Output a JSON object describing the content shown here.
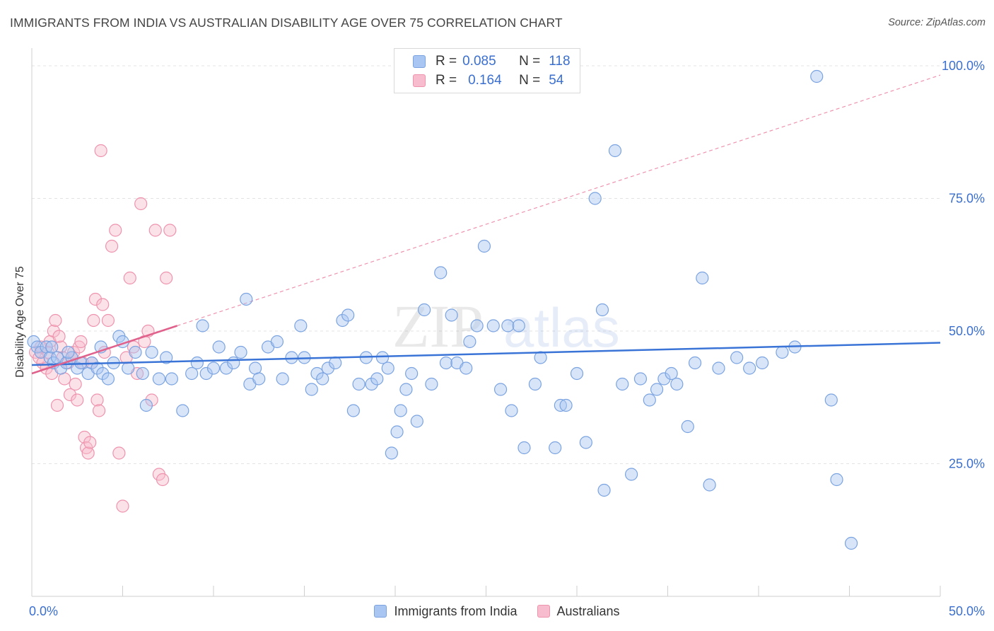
{
  "title": "IMMIGRANTS FROM INDIA VS AUSTRALIAN DISABILITY AGE OVER 75 CORRELATION CHART",
  "source": "Source: ZipAtlas.com",
  "watermark": {
    "zip": "ZIP",
    "atlas": "atlas"
  },
  "colors": {
    "blue_fill": "#a9c6f2",
    "blue_stroke": "#7aa3e0",
    "blue_line": "#3a74d6",
    "pink_fill": "#f7bccd",
    "pink_stroke": "#ee93ae",
    "pink_line": "#e0628c",
    "axis_text": "#3a6fcf",
    "grid": "#e3e3e3"
  },
  "legend": {
    "rows": [
      {
        "r_label": "R =",
        "r_value": "0.085",
        "n_label": "N =",
        "n_value": "118"
      },
      {
        "r_label": "R =",
        "r_value": "0.164",
        "n_label": "N =",
        "n_value": "54"
      }
    ]
  },
  "bottom_legend": {
    "series1": "Immigrants from India",
    "series2": "Australians"
  },
  "chart_data": {
    "type": "scatter",
    "title": "IMMIGRANTS FROM INDIA VS AUSTRALIAN DISABILITY AGE OVER 75 CORRELATION CHART",
    "xlabel": "",
    "ylabel": "Disability Age Over 75",
    "xlim": [
      0,
      50
    ],
    "ylim": [
      0,
      102
    ],
    "x_tick_labels": {
      "left": "0.0%",
      "right": "50.0%"
    },
    "y_ticks": [
      {
        "value": 25,
        "label": "25.0%"
      },
      {
        "value": 50,
        "label": "50.0%"
      },
      {
        "value": 75,
        "label": "75.0%"
      },
      {
        "value": 100,
        "label": "100.0%"
      }
    ],
    "grid": true,
    "series": [
      {
        "name": "Immigrants from India",
        "R": 0.085,
        "N": 118,
        "trend": {
          "x0": 0,
          "y0": 43.6,
          "x1": 50,
          "y1": 47.8
        },
        "points": [
          [
            0.1,
            48
          ],
          [
            0.3,
            47
          ],
          [
            0.5,
            46
          ],
          [
            0.8,
            47
          ],
          [
            1.0,
            45
          ],
          [
            1.2,
            44
          ],
          [
            1.4,
            45
          ],
          [
            1.6,
            43
          ],
          [
            1.9,
            44
          ],
          [
            2.2,
            45
          ],
          [
            2.5,
            43
          ],
          [
            2.7,
            44
          ],
          [
            3.1,
            42
          ],
          [
            3.3,
            44
          ],
          [
            3.6,
            43
          ],
          [
            3.9,
            42
          ],
          [
            4.2,
            41
          ],
          [
            4.5,
            44
          ],
          [
            4.8,
            49
          ],
          [
            5.3,
            43
          ],
          [
            5.7,
            46
          ],
          [
            6.1,
            42
          ],
          [
            6.6,
            46
          ],
          [
            7.0,
            41
          ],
          [
            7.4,
            45
          ],
          [
            7.7,
            41
          ],
          [
            8.3,
            35
          ],
          [
            8.8,
            42
          ],
          [
            9.1,
            44
          ],
          [
            9.4,
            51
          ],
          [
            9.6,
            42
          ],
          [
            10.0,
            43
          ],
          [
            10.3,
            47
          ],
          [
            10.7,
            43
          ],
          [
            11.1,
            44
          ],
          [
            11.5,
            46
          ],
          [
            11.8,
            56
          ],
          [
            12.0,
            40
          ],
          [
            12.3,
            43
          ],
          [
            12.5,
            41
          ],
          [
            13.0,
            47
          ],
          [
            13.5,
            48
          ],
          [
            13.8,
            41
          ],
          [
            14.3,
            45
          ],
          [
            14.8,
            51
          ],
          [
            15.0,
            45
          ],
          [
            15.4,
            39
          ],
          [
            15.7,
            42
          ],
          [
            16.0,
            41
          ],
          [
            16.3,
            43
          ],
          [
            16.7,
            44
          ],
          [
            17.1,
            52
          ],
          [
            17.4,
            53
          ],
          [
            17.7,
            35
          ],
          [
            18.0,
            40
          ],
          [
            18.4,
            45
          ],
          [
            18.7,
            40
          ],
          [
            19.0,
            41
          ],
          [
            19.3,
            45
          ],
          [
            19.6,
            43
          ],
          [
            19.8,
            27
          ],
          [
            20.1,
            31
          ],
          [
            20.3,
            35
          ],
          [
            20.6,
            39
          ],
          [
            20.9,
            42
          ],
          [
            21.2,
            33
          ],
          [
            21.6,
            54
          ],
          [
            22.0,
            40
          ],
          [
            22.5,
            61
          ],
          [
            22.8,
            44
          ],
          [
            23.1,
            53
          ],
          [
            23.4,
            44
          ],
          [
            23.9,
            43
          ],
          [
            24.1,
            48
          ],
          [
            24.5,
            51
          ],
          [
            24.9,
            66
          ],
          [
            25.4,
            51
          ],
          [
            25.8,
            39
          ],
          [
            26.2,
            51
          ],
          [
            26.4,
            35
          ],
          [
            26.8,
            51
          ],
          [
            27.1,
            28
          ],
          [
            27.7,
            40
          ],
          [
            28.8,
            28
          ],
          [
            29.1,
            36
          ],
          [
            29.4,
            36
          ],
          [
            30.5,
            29
          ],
          [
            31.0,
            75
          ],
          [
            31.4,
            54
          ],
          [
            31.5,
            20
          ],
          [
            32.1,
            84
          ],
          [
            33.0,
            23
          ],
          [
            34.0,
            37
          ],
          [
            34.4,
            39
          ],
          [
            34.8,
            41
          ],
          [
            35.2,
            42
          ],
          [
            35.5,
            40
          ],
          [
            36.1,
            32
          ],
          [
            36.9,
            60
          ],
          [
            37.3,
            21
          ],
          [
            43.2,
            98
          ],
          [
            44.0,
            37
          ],
          [
            44.3,
            22
          ],
          [
            45.1,
            10
          ],
          [
            38.8,
            45
          ],
          [
            39.5,
            43
          ],
          [
            40.2,
            44
          ],
          [
            41.3,
            46
          ],
          [
            42.0,
            47
          ],
          [
            36.5,
            44
          ],
          [
            37.8,
            43
          ],
          [
            33.5,
            41
          ],
          [
            32.5,
            40
          ],
          [
            30.0,
            42
          ],
          [
            28.0,
            45
          ],
          [
            6.3,
            36
          ],
          [
            5.0,
            48
          ],
          [
            3.8,
            47
          ],
          [
            2.0,
            46
          ],
          [
            1.1,
            47
          ]
        ]
      },
      {
        "name": "Australians",
        "R": 0.164,
        "N": 54,
        "trend": {
          "x0": 0,
          "y0": 42.0,
          "x1": 8.0,
          "y1": 51.0
        },
        "points": [
          [
            0.2,
            46
          ],
          [
            0.4,
            45
          ],
          [
            0.6,
            44
          ],
          [
            0.8,
            43
          ],
          [
            1.0,
            48
          ],
          [
            1.1,
            42
          ],
          [
            1.2,
            50
          ],
          [
            1.3,
            52
          ],
          [
            1.4,
            36
          ],
          [
            1.6,
            47
          ],
          [
            1.7,
            45
          ],
          [
            1.8,
            41
          ],
          [
            2.0,
            44
          ],
          [
            2.1,
            38
          ],
          [
            2.3,
            46
          ],
          [
            2.4,
            40
          ],
          [
            2.5,
            37
          ],
          [
            2.6,
            47
          ],
          [
            2.7,
            48
          ],
          [
            2.8,
            44
          ],
          [
            2.9,
            30
          ],
          [
            3.0,
            28
          ],
          [
            3.1,
            27
          ],
          [
            3.2,
            29
          ],
          [
            3.4,
            52
          ],
          [
            3.5,
            56
          ],
          [
            3.6,
            37
          ],
          [
            3.7,
            35
          ],
          [
            3.8,
            84
          ],
          [
            3.9,
            55
          ],
          [
            4.0,
            46
          ],
          [
            4.2,
            52
          ],
          [
            4.4,
            66
          ],
          [
            4.6,
            69
          ],
          [
            4.8,
            27
          ],
          [
            5.0,
            17
          ],
          [
            5.2,
            45
          ],
          [
            5.4,
            60
          ],
          [
            5.6,
            47
          ],
          [
            5.8,
            42
          ],
          [
            6.0,
            74
          ],
          [
            6.2,
            48
          ],
          [
            6.4,
            50
          ],
          [
            6.6,
            37
          ],
          [
            6.8,
            69
          ],
          [
            7.0,
            23
          ],
          [
            7.2,
            22
          ],
          [
            7.4,
            60
          ],
          [
            7.6,
            69
          ],
          [
            0.5,
            47
          ],
          [
            0.9,
            46
          ],
          [
            1.5,
            49
          ],
          [
            2.2,
            45
          ],
          [
            3.3,
            44
          ]
        ]
      }
    ]
  }
}
